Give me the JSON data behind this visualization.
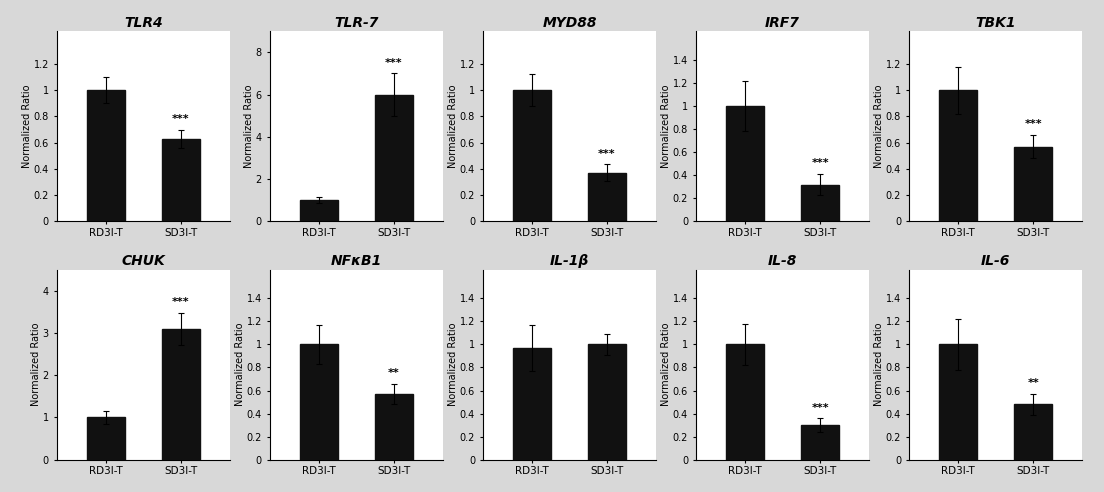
{
  "charts": [
    {
      "title": "TLR4",
      "ylim": [
        0,
        1.45
      ],
      "yticks": [
        0,
        0.2,
        0.4,
        0.6,
        0.8,
        1.0,
        1.2
      ],
      "bars": [
        {
          "label": "RD3I-T",
          "value": 1.0,
          "error": 0.1
        },
        {
          "label": "SD3I-T",
          "value": 0.63,
          "error": 0.07,
          "sig": "***"
        }
      ]
    },
    {
      "title": "TLR-7",
      "ylim": [
        0,
        9.0
      ],
      "yticks": [
        0,
        2,
        4,
        6,
        8
      ],
      "bars": [
        {
          "label": "RD3I-T",
          "value": 1.0,
          "error": 0.15
        },
        {
          "label": "SD3I-T",
          "value": 6.0,
          "error": 1.0,
          "sig": "***"
        }
      ]
    },
    {
      "title": "MYD88",
      "ylim": [
        0,
        1.45
      ],
      "yticks": [
        0,
        0.2,
        0.4,
        0.6,
        0.8,
        1.0,
        1.2
      ],
      "bars": [
        {
          "label": "RD3I-T",
          "value": 1.0,
          "error": 0.12
        },
        {
          "label": "SD3I-T",
          "value": 0.37,
          "error": 0.065,
          "sig": "***"
        }
      ]
    },
    {
      "title": "IRF7",
      "ylim": [
        0,
        1.65
      ],
      "yticks": [
        0,
        0.2,
        0.4,
        0.6,
        0.8,
        1.0,
        1.2,
        1.4
      ],
      "bars": [
        {
          "label": "RD3I-T",
          "value": 1.0,
          "error": 0.22
        },
        {
          "label": "SD3I-T",
          "value": 0.32,
          "error": 0.09,
          "sig": "***"
        }
      ]
    },
    {
      "title": "TBK1",
      "ylim": [
        0,
        1.45
      ],
      "yticks": [
        0,
        0.2,
        0.4,
        0.6,
        0.8,
        1.0,
        1.2
      ],
      "bars": [
        {
          "label": "RD3I-T",
          "value": 1.0,
          "error": 0.18
        },
        {
          "label": "SD3I-T",
          "value": 0.57,
          "error": 0.09,
          "sig": "***"
        }
      ]
    },
    {
      "title": "CHUK",
      "ylim": [
        0,
        4.5
      ],
      "yticks": [
        0,
        1,
        2,
        3,
        4
      ],
      "bars": [
        {
          "label": "RD3I-T",
          "value": 1.0,
          "error": 0.15
        },
        {
          "label": "SD3I-T",
          "value": 3.1,
          "error": 0.38,
          "sig": "***"
        }
      ]
    },
    {
      "title": "NFκB1",
      "ylim": [
        0,
        1.65
      ],
      "yticks": [
        0,
        0.2,
        0.4,
        0.6,
        0.8,
        1.0,
        1.2,
        1.4
      ],
      "bars": [
        {
          "label": "RD3I-T",
          "value": 1.0,
          "error": 0.17
        },
        {
          "label": "SD3I-T",
          "value": 0.57,
          "error": 0.09,
          "sig": "**"
        }
      ]
    },
    {
      "title": "IL-1β",
      "ylim": [
        0,
        1.65
      ],
      "yticks": [
        0,
        0.2,
        0.4,
        0.6,
        0.8,
        1.0,
        1.2,
        1.4
      ],
      "bars": [
        {
          "label": "RD3I-T",
          "value": 0.97,
          "error": 0.2
        },
        {
          "label": "SD3I-T",
          "value": 1.0,
          "error": 0.09
        }
      ]
    },
    {
      "title": "IL-8",
      "ylim": [
        0,
        1.65
      ],
      "yticks": [
        0,
        0.2,
        0.4,
        0.6,
        0.8,
        1.0,
        1.2,
        1.4
      ],
      "bars": [
        {
          "label": "RD3I-T",
          "value": 1.0,
          "error": 0.18
        },
        {
          "label": "SD3I-T",
          "value": 0.3,
          "error": 0.06,
          "sig": "***"
        }
      ]
    },
    {
      "title": "IL-6",
      "ylim": [
        0,
        1.65
      ],
      "yticks": [
        0,
        0.2,
        0.4,
        0.6,
        0.8,
        1.0,
        1.2,
        1.4
      ],
      "bars": [
        {
          "label": "RD3I-T",
          "value": 1.0,
          "error": 0.22
        },
        {
          "label": "SD3I-T",
          "value": 0.48,
          "error": 0.09,
          "sig": "**"
        }
      ]
    }
  ],
  "bar_color": "#111111",
  "bar_width": 0.5,
  "ylabel": "Normalized Ratio",
  "ylabel_fontsize": 7,
  "title_fontsize": 10,
  "tick_fontsize": 7,
  "sig_fontsize": 8,
  "xlabel_fontsize": 7.5,
  "figure_facecolor": "#d8d8d8",
  "axes_facecolor": "#ffffff",
  "nrows": 2,
  "ncols": 5
}
